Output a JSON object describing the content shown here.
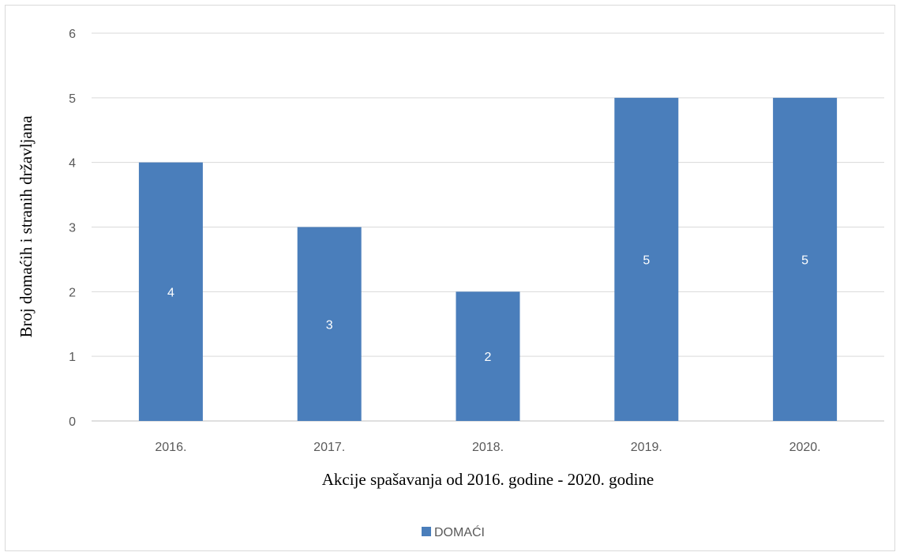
{
  "chart_data": {
    "type": "bar",
    "categories": [
      "2016.",
      "2017.",
      "2018.",
      "2019.",
      "2020."
    ],
    "series": [
      {
        "name": "DOMAĆI",
        "values": [
          4,
          3,
          2,
          5,
          5
        ],
        "color": "#4a7ebb"
      }
    ],
    "ylim": [
      0,
      6
    ],
    "yticks": [
      "0",
      "1",
      "2",
      "3",
      "4",
      "5",
      "6"
    ],
    "xlabel": "Akcije spašavanja od 2016. godine - 2020. godine",
    "ylabel": "Broj domaćih i stranih državljana",
    "grid": true,
    "legend_position": "bottom",
    "data_labels": [
      "4",
      "3",
      "2",
      "5",
      "5"
    ]
  }
}
